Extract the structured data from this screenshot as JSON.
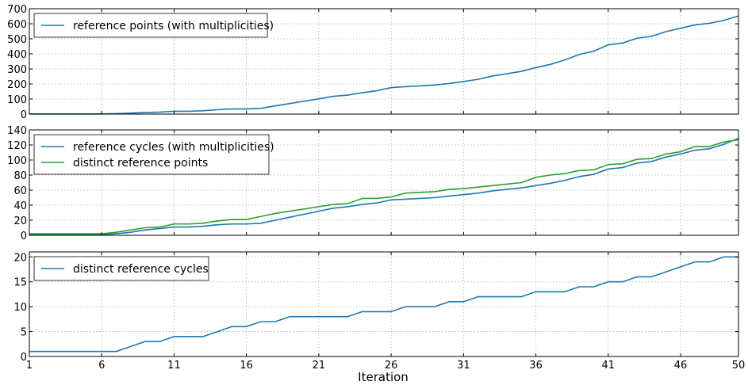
{
  "colors": {
    "blue": "#1f77b4",
    "green": "#2ca02c"
  },
  "xlabel": "Iteration",
  "x_ticks": [
    1,
    6,
    11,
    16,
    21,
    26,
    31,
    36,
    41,
    46,
    50
  ],
  "chart_data": [
    {
      "type": "line",
      "xlim": [
        1,
        50
      ],
      "ylim": [
        0,
        700
      ],
      "yticks": [
        0,
        100,
        200,
        300,
        400,
        500,
        600,
        700
      ],
      "grid": true,
      "legend_placement": "top-left",
      "x": [
        1,
        2,
        3,
        4,
        5,
        6,
        7,
        8,
        9,
        10,
        11,
        12,
        13,
        14,
        15,
        16,
        17,
        18,
        19,
        20,
        21,
        22,
        23,
        24,
        25,
        26,
        27,
        28,
        29,
        30,
        31,
        32,
        33,
        34,
        35,
        36,
        37,
        38,
        39,
        40,
        41,
        42,
        43,
        44,
        45,
        46,
        47,
        48,
        49,
        50
      ],
      "series": [
        {
          "name": "reference points (with multiplicities)",
          "color": "blue",
          "values": [
            1,
            1,
            1,
            1,
            1,
            1,
            3,
            6,
            10,
            13,
            19,
            19,
            22,
            29,
            34,
            34,
            38,
            55,
            70,
            86,
            101,
            118,
            126,
            142,
            155,
            176,
            182,
            187,
            193,
            203,
            216,
            231,
            253,
            268,
            284,
            309,
            330,
            360,
            396,
            418,
            460,
            472,
            504,
            517,
            548,
            570,
            593,
            603,
            623,
            652
          ]
        }
      ]
    },
    {
      "type": "line",
      "xlim": [
        1,
        50
      ],
      "ylim": [
        0,
        140
      ],
      "yticks": [
        0,
        20,
        40,
        60,
        80,
        100,
        120,
        140
      ],
      "grid": true,
      "legend_placement": "top-left",
      "x": [
        1,
        2,
        3,
        4,
        5,
        6,
        7,
        8,
        9,
        10,
        11,
        12,
        13,
        14,
        15,
        16,
        17,
        18,
        19,
        20,
        21,
        22,
        23,
        24,
        25,
        26,
        27,
        28,
        29,
        30,
        31,
        32,
        33,
        34,
        35,
        36,
        37,
        38,
        39,
        40,
        41,
        42,
        43,
        44,
        45,
        46,
        47,
        48,
        49,
        50
      ],
      "series": [
        {
          "name": "reference cycles (with multiplicities)",
          "color": "blue",
          "values": [
            1,
            1,
            1,
            1,
            1,
            1,
            2,
            4,
            7,
            9,
            11,
            11,
            12,
            14,
            15,
            15,
            16,
            20,
            24,
            28,
            32,
            36,
            38,
            41,
            43,
            47,
            48,
            49,
            50,
            52,
            54,
            56,
            59,
            61,
            63,
            66,
            69,
            73,
            78,
            81,
            88,
            90,
            96,
            98,
            104,
            108,
            113,
            115,
            121,
            129
          ]
        },
        {
          "name": "distinct reference points",
          "color": "green",
          "values": [
            2,
            2,
            2,
            2,
            2,
            2,
            4,
            7,
            10,
            11,
            15,
            15,
            16,
            19,
            21,
            21,
            25,
            29,
            32,
            35,
            38,
            41,
            42,
            49,
            49,
            51,
            56,
            57,
            58,
            61,
            62,
            64,
            66,
            68,
            70,
            77,
            80,
            82,
            86,
            87,
            94,
            95,
            101,
            102,
            108,
            111,
            118,
            118,
            124,
            127
          ]
        }
      ]
    },
    {
      "type": "line",
      "xlim": [
        1,
        50
      ],
      "ylim": [
        0,
        21
      ],
      "yticks": [
        0,
        5,
        10,
        15,
        20
      ],
      "grid": true,
      "legend_placement": "top-left",
      "x": [
        1,
        2,
        3,
        4,
        5,
        6,
        7,
        8,
        9,
        10,
        11,
        12,
        13,
        14,
        15,
        16,
        17,
        18,
        19,
        20,
        21,
        22,
        23,
        24,
        25,
        26,
        27,
        28,
        29,
        30,
        31,
        32,
        33,
        34,
        35,
        36,
        37,
        38,
        39,
        40,
        41,
        42,
        43,
        44,
        45,
        46,
        47,
        48,
        49,
        50
      ],
      "series": [
        {
          "name": "distinct reference cycles",
          "color": "blue",
          "values": [
            1,
            1,
            1,
            1,
            1,
            1,
            1,
            2,
            3,
            3,
            4,
            4,
            4,
            5,
            6,
            6,
            7,
            7,
            8,
            8,
            8,
            8,
            8,
            9,
            9,
            9,
            10,
            10,
            10,
            11,
            11,
            12,
            12,
            12,
            12,
            13,
            13,
            13,
            14,
            14,
            15,
            15,
            16,
            16,
            17,
            18,
            19,
            19,
            20,
            20
          ]
        }
      ]
    }
  ]
}
